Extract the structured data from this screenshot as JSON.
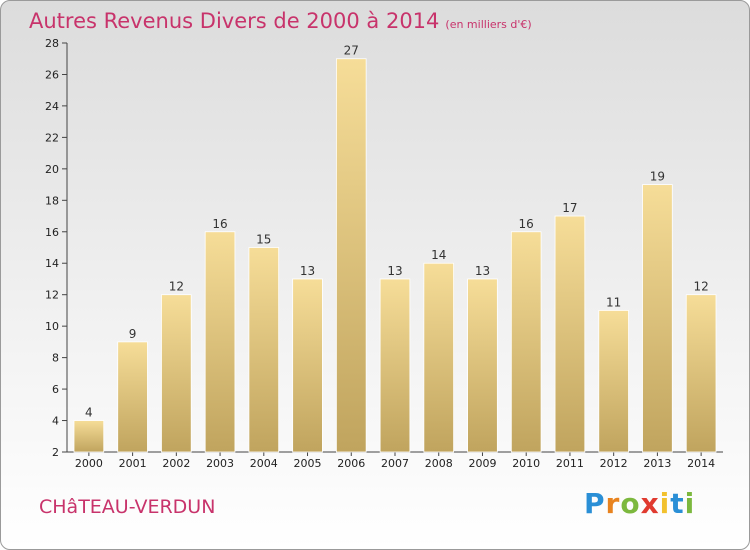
{
  "title": "Autres Revenus Divers de 2000 à 2014",
  "subtitle": "(en milliers d'€)",
  "commune": "CHâTEAU-VERDUN",
  "brand": {
    "letters": [
      "P",
      "r",
      "o",
      "x",
      "i",
      "t",
      "i"
    ],
    "colors": [
      "#2a8fd6",
      "#e8831f",
      "#7cb83e",
      "#e03a2f",
      "#f2c12e",
      "#2a8fd6",
      "#7cb83e"
    ]
  },
  "colors": {
    "accent": "#c8336b",
    "bar_light": "#f6dd98",
    "bar_dark": "#c0a45e"
  },
  "chart_data": {
    "type": "bar",
    "title": "Autres Revenus Divers de 2000 à 2014",
    "subtitle": "(en milliers d'€)",
    "categories": [
      "2000",
      "2001",
      "2002",
      "2003",
      "2004",
      "2005",
      "2006",
      "2007",
      "2008",
      "2009",
      "2010",
      "2011",
      "2012",
      "2013",
      "2014"
    ],
    "values": [
      4,
      9,
      12,
      16,
      15,
      13,
      27,
      13,
      14,
      13,
      16,
      17,
      11,
      19,
      12
    ],
    "ylim": [
      2,
      28
    ],
    "yticks": [
      2,
      4,
      6,
      8,
      10,
      12,
      14,
      16,
      18,
      20,
      22,
      24,
      26,
      28
    ],
    "grid": false,
    "legend": "none"
  }
}
